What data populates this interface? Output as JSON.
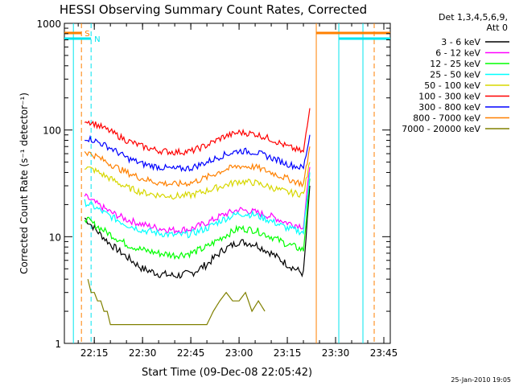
{
  "chart_data": {
    "type": "line",
    "title": "HESSI Observing Summary Count Rates, Corrected",
    "xlabel": "Start Time (09-Dec-08 22:05:42)",
    "ylabel": "Corrected Count Rate (s⁻¹ detector⁻¹)",
    "yscale": "log",
    "ylim": [
      1,
      1000
    ],
    "xlim": [
      "22:05:42",
      "23:47:00"
    ],
    "x_ticks": [
      "22:15",
      "22:30",
      "22:45",
      "23:00",
      "23:15",
      "23:30",
      "23:45"
    ],
    "y_ticks": [
      "1",
      "10",
      "100",
      "1000"
    ],
    "grid": false,
    "legend_header": [
      "Det 1,3,4,5,6,9,",
      "Att 0"
    ],
    "legend_position": "right",
    "footer_date": "25-Jan-2010 19:05",
    "flags": [
      {
        "label": "S",
        "color": "#ff8000",
        "start": "22:05:42",
        "end": "22:11:00"
      },
      {
        "label": "N",
        "color": "#00e5ee",
        "start": "22:05:42",
        "end": "22:14:00"
      }
    ],
    "markers": [
      {
        "time": "22:08:30",
        "color": "#00e5ee",
        "style": "solid"
      },
      {
        "time": "22:11:00",
        "color": "#ff8000",
        "style": "dashed"
      },
      {
        "time": "22:14:00",
        "color": "#00e5ee",
        "style": "dashed"
      },
      {
        "time": "23:24:00",
        "color": "#ff8000",
        "style": "solid"
      },
      {
        "time": "23:31:00",
        "color": "#00e5ee",
        "style": "solid"
      },
      {
        "time": "23:38:30",
        "color": "#00e5ee",
        "style": "solid"
      },
      {
        "time": "23:42:00",
        "color": "#ff8000",
        "style": "dashed"
      }
    ],
    "series": [
      {
        "name": "3 - 6 keV",
        "color": "#000000",
        "x": [
          "22:12",
          "22:15",
          "22:20",
          "22:25",
          "22:30",
          "22:35",
          "22:40",
          "22:45",
          "22:50",
          "22:55",
          "23:00",
          "23:05",
          "23:10",
          "23:15",
          "23:20",
          "23:22"
        ],
        "y": [
          15,
          12,
          8.5,
          6.5,
          5,
          4.5,
          4.3,
          4.5,
          5.5,
          7.5,
          9,
          8.5,
          7,
          5.5,
          4.5,
          30
        ]
      },
      {
        "name": "6 - 12 keV",
        "color": "#ff00ff",
        "x": [
          "22:12",
          "22:15",
          "22:20",
          "22:25",
          "22:30",
          "22:35",
          "22:40",
          "22:45",
          "22:50",
          "22:55",
          "23:00",
          "23:05",
          "23:10",
          "23:15",
          "23:20",
          "23:22"
        ],
        "y": [
          24,
          21,
          17,
          14.5,
          13,
          12,
          11.5,
          11.8,
          13.5,
          16,
          18,
          17,
          15.5,
          13.5,
          12.5,
          45
        ]
      },
      {
        "name": "12 - 25 keV",
        "color": "#00ff00",
        "x": [
          "22:12",
          "22:15",
          "22:20",
          "22:25",
          "22:30",
          "22:35",
          "22:40",
          "22:45",
          "22:50",
          "22:55",
          "23:00",
          "23:05",
          "23:10",
          "23:15",
          "23:20",
          "23:22"
        ],
        "y": [
          15,
          13,
          10.5,
          8.5,
          7.5,
          7,
          6.7,
          7,
          8,
          10,
          12,
          11.5,
          10,
          8.5,
          7.5,
          35
        ]
      },
      {
        "name": "25 - 50 keV",
        "color": "#00ffff",
        "x": [
          "22:12",
          "22:15",
          "22:20",
          "22:25",
          "22:30",
          "22:35",
          "22:40",
          "22:45",
          "22:50",
          "22:55",
          "23:00",
          "23:05",
          "23:10",
          "23:15",
          "23:20",
          "23:22"
        ],
        "y": [
          21,
          19,
          15.5,
          13,
          11.5,
          10.8,
          10.3,
          10.6,
          12,
          14.5,
          16.5,
          16,
          14,
          12,
          11,
          40
        ]
      },
      {
        "name": "50 - 100 keV",
        "color": "#d7d700",
        "x": [
          "22:12",
          "22:15",
          "22:20",
          "22:25",
          "22:30",
          "22:35",
          "22:40",
          "22:45",
          "22:50",
          "22:55",
          "23:00",
          "23:05",
          "23:10",
          "23:15",
          "23:20",
          "23:22"
        ],
        "y": [
          45,
          42,
          35,
          29,
          26,
          24.5,
          24,
          24.5,
          27,
          30,
          33,
          32,
          29,
          26,
          25,
          50
        ]
      },
      {
        "name": "100 - 300 keV",
        "color": "#ff0000",
        "x": [
          "22:12",
          "22:15",
          "22:20",
          "22:25",
          "22:30",
          "22:35",
          "22:40",
          "22:45",
          "22:50",
          "22:55",
          "23:00",
          "23:05",
          "23:10",
          "23:15",
          "23:20",
          "23:22"
        ],
        "y": [
          125,
          115,
          97,
          80,
          70,
          64,
          62,
          63,
          72,
          86,
          95,
          92,
          82,
          70,
          62,
          160
        ]
      },
      {
        "name": "300 - 800 keV",
        "color": "#0000ff",
        "x": [
          "22:12",
          "22:15",
          "22:20",
          "22:25",
          "22:30",
          "22:35",
          "22:40",
          "22:45",
          "22:50",
          "22:55",
          "23:00",
          "23:05",
          "23:10",
          "23:15",
          "23:20",
          "23:22"
        ],
        "y": [
          85,
          80,
          68,
          55,
          48,
          45,
          43,
          44,
          50,
          58,
          64,
          62,
          55,
          48,
          44,
          90
        ]
      },
      {
        "name": "800 - 7000 keV",
        "color": "#ff8000",
        "x": [
          "22:12",
          "22:15",
          "22:20",
          "22:25",
          "22:30",
          "22:35",
          "22:40",
          "22:45",
          "22:50",
          "22:55",
          "23:00",
          "23:05",
          "23:10",
          "23:15",
          "23:20",
          "23:22"
        ],
        "y": [
          63,
          58,
          48,
          40,
          35,
          32,
          31,
          32,
          36,
          42,
          46,
          45,
          40,
          35,
          31,
          70
        ]
      },
      {
        "name": "7000 - 20000 keV",
        "color": "#808000",
        "x": [
          "22:13",
          "22:14",
          "22:15",
          "22:16",
          "22:17",
          "22:18",
          "22:19",
          "22:20",
          "22:50",
          "22:52",
          "22:54",
          "22:56",
          "22:58",
          "23:00",
          "23:02",
          "23:04",
          "23:06",
          "23:08"
        ],
        "y": [
          4,
          3,
          3,
          2.5,
          2.5,
          2,
          2,
          1.5,
          1.5,
          2,
          2.5,
          3,
          2.5,
          2.5,
          3,
          2,
          2.5,
          2
        ]
      }
    ]
  }
}
